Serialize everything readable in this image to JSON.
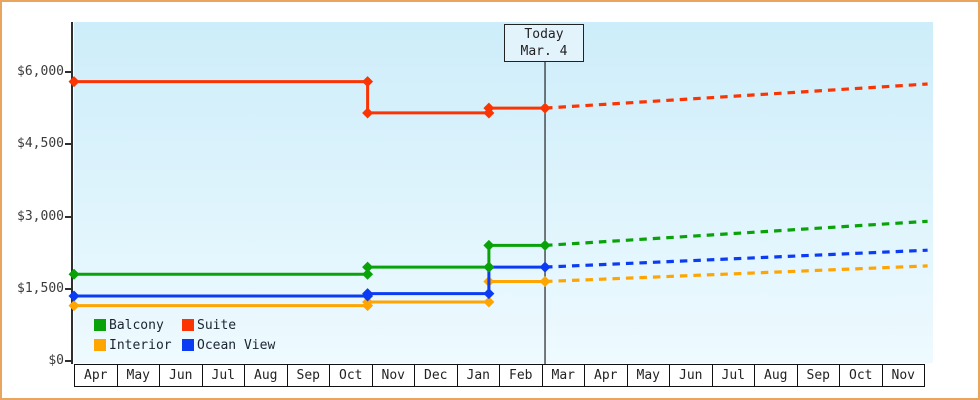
{
  "window": {
    "frame_border_color": "#e9a45e",
    "plot_bg_top": "#cdedfa",
    "plot_bg_bottom": "#eefaff",
    "axis_color": "#2f2f2f"
  },
  "chart_data": {
    "type": "line",
    "description": "Cabin price history (solid) with dashed future projection per cabin category",
    "grid": false,
    "legend_position": "bottom-left-inside",
    "y_axis": {
      "tick_labels": [
        "$0",
        "$1,500",
        "$3,000",
        "$4,500",
        "$6,000"
      ],
      "tick_values": [
        0,
        1500,
        3000,
        4500,
        6000
      ],
      "min_value": 0,
      "max_value": 7040
    },
    "x_axis": {
      "month_labels": [
        "Apr",
        "May",
        "Jun",
        "Jul",
        "Aug",
        "Sep",
        "Oct",
        "Nov",
        "Dec",
        "Jan",
        "Feb",
        "Mar",
        "Apr",
        "May",
        "Jun",
        "Jul",
        "Aug",
        "Sep",
        "Oct",
        "Nov"
      ]
    },
    "today_marker": {
      "title": "Today",
      "date": "Mar. 4",
      "month_offset": 11.07
    },
    "series": [
      {
        "name": "Suite",
        "color": "#fa3503",
        "solid": [
          [
            0,
            5800
          ],
          [
            6.9,
            5800
          ],
          [
            6.9,
            5150
          ],
          [
            9.75,
            5150
          ],
          [
            9.75,
            5250
          ],
          [
            11.07,
            5250
          ]
        ],
        "projection": [
          [
            11.07,
            5250
          ],
          [
            20.06,
            5750
          ]
        ]
      },
      {
        "name": "Interior",
        "color": "#ffa502",
        "solid": [
          [
            0,
            1150
          ],
          [
            6.9,
            1150
          ],
          [
            6.9,
            1225
          ],
          [
            9.75,
            1225
          ],
          [
            9.75,
            1650
          ],
          [
            11.07,
            1650
          ]
        ],
        "projection": [
          [
            11.07,
            1650
          ],
          [
            20.06,
            1975
          ]
        ]
      },
      {
        "name": "Ocean View",
        "color": "#0b3cf3",
        "solid": [
          [
            0,
            1350
          ],
          [
            6.9,
            1350
          ],
          [
            6.9,
            1400
          ],
          [
            9.75,
            1400
          ],
          [
            9.75,
            1950
          ],
          [
            11.07,
            1950
          ]
        ],
        "projection": [
          [
            11.07,
            1950
          ],
          [
            20.06,
            2300
          ]
        ]
      },
      {
        "name": "Balcony",
        "color": "#09a309",
        "solid": [
          [
            0,
            1800
          ],
          [
            6.9,
            1800
          ],
          [
            6.9,
            1950
          ],
          [
            9.75,
            1950
          ],
          [
            9.75,
            2400
          ],
          [
            11.07,
            2400
          ]
        ],
        "projection": [
          [
            11.07,
            2400
          ],
          [
            20.06,
            2900
          ]
        ]
      }
    ],
    "legend": [
      {
        "label": "Balcony",
        "color": "#09a309"
      },
      {
        "label": "Suite",
        "color": "#fa3503"
      },
      {
        "label": "Interior",
        "color": "#ffa502"
      },
      {
        "label": "Ocean View",
        "color": "#0b3cf3"
      }
    ]
  }
}
